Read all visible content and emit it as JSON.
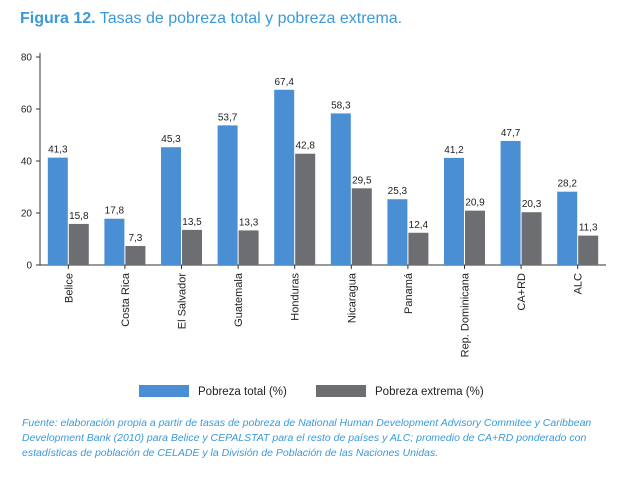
{
  "figure": {
    "number": "Figura 12.",
    "title": "Tasas de pobreza total y pobreza extrema."
  },
  "chart_data": {
    "type": "bar",
    "categories": [
      "Belice",
      "Costa Rica",
      "El Salvador",
      "Guatemala",
      "Honduras",
      "Nicaragua",
      "Panamá",
      "Rep. Dominicana",
      "CA+RD",
      "ALC"
    ],
    "series": [
      {
        "name": "Pobreza total (%)",
        "color": "#4a8fd4",
        "values": [
          41.3,
          17.8,
          45.3,
          53.7,
          67.4,
          58.3,
          25.3,
          41.2,
          47.7,
          28.2
        ],
        "labels": [
          "41,3",
          "17,8",
          "45,3",
          "53,7",
          "67,4",
          "58,3",
          "25,3",
          "41,2",
          "47,7",
          "28,2"
        ]
      },
      {
        "name": "Pobreza extrema (%)",
        "color": "#6d6e71",
        "values": [
          15.8,
          7.3,
          13.5,
          13.3,
          42.8,
          29.5,
          12.4,
          20.9,
          20.3,
          11.3
        ],
        "labels": [
          "15,8",
          "7,3",
          "13,5",
          "13,3",
          "42,8",
          "29,5",
          "12,4",
          "20,9",
          "20,3",
          "11,3"
        ]
      }
    ],
    "ylim": [
      0,
      80
    ],
    "yticks": [
      0,
      20,
      40,
      60,
      80
    ],
    "grid": false,
    "legend": "bottom"
  },
  "source_note": "Fuente: elaboración propia a partir de tasas de pobreza de National Human Development Advisory Commitee y Caribbean Development Bank (2010) para Belice y CEPALSTAT para el resto de países y ALC; promedio de CA+RD ponderado con estadísticas de población de CELADE y la División de Población de las Naciones Unidas."
}
